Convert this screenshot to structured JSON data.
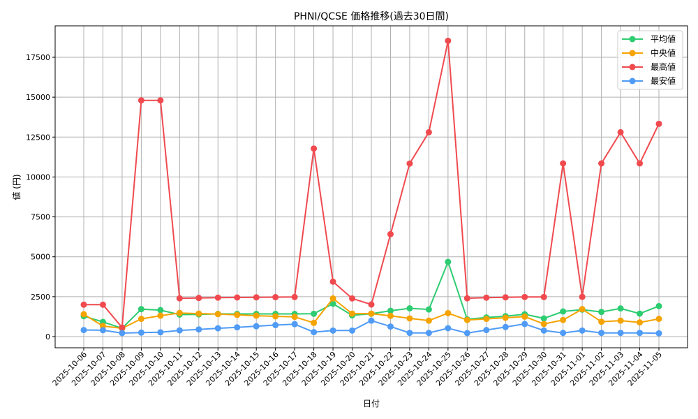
{
  "chart_data": {
    "type": "line",
    "title": "PHNI/QCSE 価格推移(過去30日間)",
    "xlabel": "日付",
    "ylabel": "値 (円)",
    "ylim": [
      -700,
      19400
    ],
    "yticks": [
      0,
      2500,
      5000,
      7500,
      10000,
      12500,
      15000,
      17500
    ],
    "grid": true,
    "legend_position": "upper right",
    "x": [
      "2025-10-06",
      "2025-10-07",
      "2025-10-08",
      "2025-10-09",
      "2025-10-10",
      "2025-10-11",
      "2025-10-12",
      "2025-10-13",
      "2025-10-14",
      "2025-10-15",
      "2025-10-16",
      "2025-10-17",
      "2025-10-18",
      "2025-10-19",
      "2025-10-20",
      "2025-10-21",
      "2025-10-22",
      "2025-10-23",
      "2025-10-24",
      "2025-10-25",
      "2025-10-26",
      "2025-10-27",
      "2025-10-28",
      "2025-10-29",
      "2025-10-30",
      "2025-10-31",
      "2025-11-01",
      "2025-11-02",
      "2025-11-03",
      "2025-11-04",
      "2025-11-05"
    ],
    "series": [
      {
        "name": "平均値",
        "color": "#2ecc71",
        "values": [
          1280,
          920,
          520,
          1720,
          1660,
          1380,
          1390,
          1420,
          1420,
          1420,
          1420,
          1420,
          1430,
          2060,
          1330,
          1430,
          1620,
          1770,
          1700,
          4680,
          1080,
          1200,
          1280,
          1400,
          1140,
          1575,
          1690,
          1545,
          1765,
          1440,
          1910
        ]
      },
      {
        "name": "中央値",
        "color": "#f5a300",
        "values": [
          1400,
          660,
          520,
          1110,
          1310,
          1480,
          1440,
          1410,
          1360,
          1310,
          1270,
          1240,
          860,
          2390,
          1440,
          1440,
          1300,
          1140,
          1000,
          1470,
          1040,
          1110,
          1180,
          1250,
          790,
          1040,
          1720,
          930,
          1000,
          890,
          1110
        ]
      },
      {
        "name": "最高値",
        "color": "#f04a4f",
        "values": [
          2000,
          2000,
          570,
          14800,
          14800,
          2400,
          2420,
          2440,
          2450,
          2460,
          2470,
          2480,
          11780,
          3440,
          2390,
          2010,
          6420,
          10840,
          12800,
          18530,
          2400,
          2440,
          2460,
          2480,
          2480,
          10850,
          2490,
          10850,
          12800,
          10850,
          13330
        ]
      },
      {
        "name": "最安値",
        "color": "#4f9bf5",
        "values": [
          410,
          400,
          220,
          250,
          270,
          390,
          450,
          520,
          580,
          650,
          720,
          780,
          280,
          380,
          380,
          1000,
          630,
          230,
          230,
          525,
          220,
          410,
          600,
          790,
          380,
          230,
          380,
          230,
          230,
          230,
          205
        ]
      }
    ]
  }
}
